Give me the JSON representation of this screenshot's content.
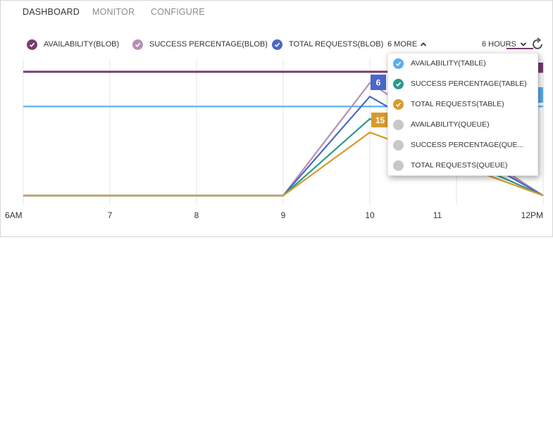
{
  "tabs": [
    "DASHBOARD",
    "MONITOR",
    "CONFIGURE"
  ],
  "legend": [
    {
      "label": "AVAILABILITY(BLOB)",
      "color": "#7a3b6f"
    },
    {
      "label": "SUCCESS PERCENTAGE(BLOB)",
      "color": "#b491b2"
    },
    {
      "label": "TOTAL REQUESTS(BLOB)",
      "color": "#4a67c9"
    }
  ],
  "more_label": "6 MORE",
  "hours_label": "6 HOURS",
  "dropdown": [
    {
      "label": "AVAILABILITY(TABLE)",
      "color": "#59acf0",
      "checked": true
    },
    {
      "label": "SUCCESS PERCENTAGE(TABLE)",
      "color": "#2a9a8a",
      "checked": true
    },
    {
      "label": "TOTAL REQUESTS(TABLE)",
      "color": "#d99a2b",
      "checked": true
    },
    {
      "label": "AVAILABILITY(QUEUE)",
      "color": "#c8c8c8",
      "checked": false
    },
    {
      "label": "SUCCESS PERCENTAGE(QUE...",
      "color": "#c8c8c8",
      "checked": false
    },
    {
      "label": "TOTAL REQUESTS(QUEUE)",
      "color": "#c8c8c8",
      "checked": false
    }
  ],
  "chart_data": {
    "type": "line",
    "x": [
      "6AM",
      "7",
      "8",
      "9",
      "10",
      "11",
      "12PM"
    ],
    "series": [
      {
        "name": "AVAILABILITY(BLOB)",
        "color": "#7a3b6f",
        "values": [
          100,
          100,
          100,
          100,
          100,
          100,
          100
        ]
      },
      {
        "name": "AVAILABILITY(TABLE)",
        "color": "#59acf0",
        "values": [
          72,
          72,
          72,
          72,
          72,
          72,
          72
        ]
      },
      {
        "name": "SUCCESS PERCENTAGE(BLOB)",
        "color": "#b491b2",
        "values": [
          0,
          0,
          0,
          0,
          91,
          null,
          0
        ]
      },
      {
        "name": "TOTAL REQUESTS(BLOB)",
        "color": "#4a67c9",
        "values": [
          0,
          0,
          0,
          0,
          80,
          null,
          0
        ]
      },
      {
        "name": "SUCCESS PERCENTAGE(TABLE)",
        "color": "#2a9a8a",
        "values": [
          0,
          0,
          0,
          0,
          62,
          null,
          0
        ]
      },
      {
        "name": "TOTAL REQUESTS(TABLE)",
        "color": "#d99a2b",
        "values": [
          0,
          0,
          0,
          0,
          51,
          null,
          0
        ]
      }
    ],
    "data_labels": [
      {
        "text": "6",
        "color": "#4a67c9"
      },
      {
        "text": "15",
        "color": "#d99a2b"
      }
    ],
    "grid": true,
    "legend": "top"
  }
}
